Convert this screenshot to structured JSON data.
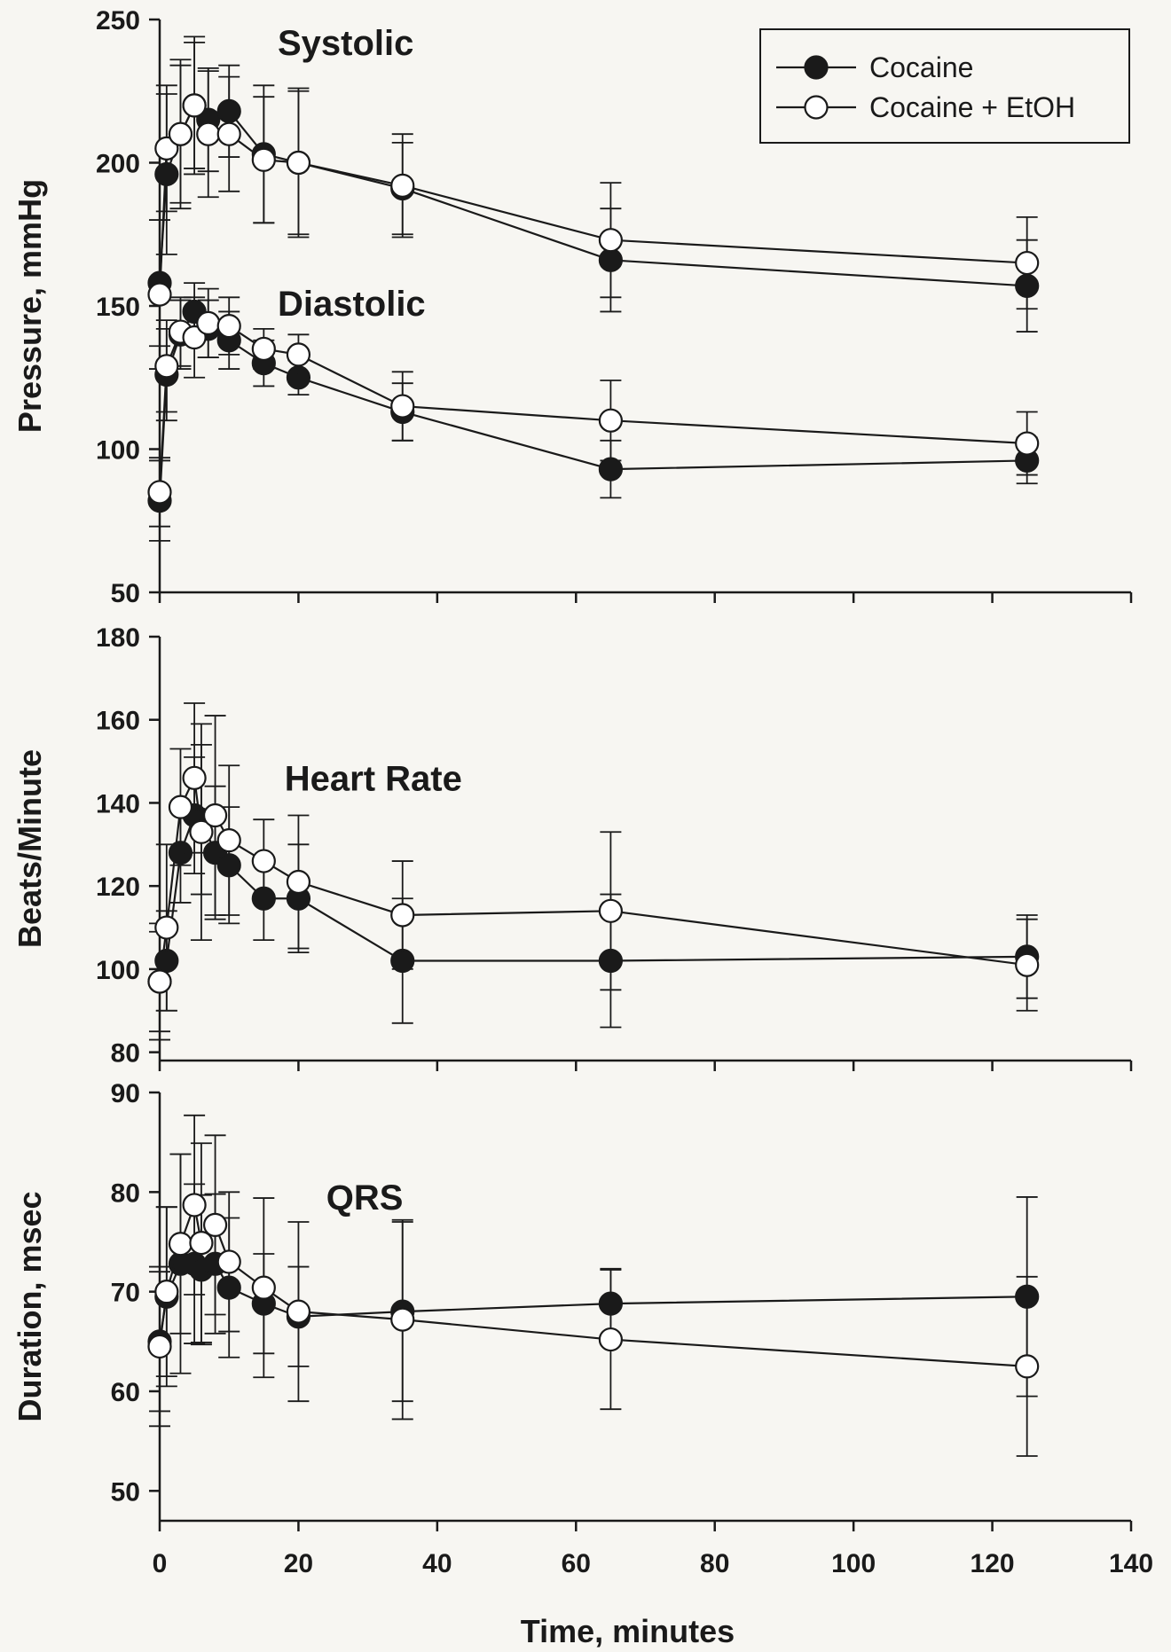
{
  "chart_data": {
    "type": "line",
    "xlabel": "Time, minutes",
    "xlim": [
      0,
      140
    ],
    "xticks": [
      0,
      20,
      40,
      60,
      80,
      100,
      120,
      140
    ],
    "legend": {
      "placement": "top-right",
      "entries": [
        {
          "label": "Cocaine",
          "marker": "filled-circle"
        },
        {
          "label": "Cocaine + EtOH",
          "marker": "open-circle"
        }
      ]
    },
    "colors": {
      "line": "#1a1a1a",
      "filled": "#1a1a1a",
      "open": "#ffffff"
    },
    "panels": [
      {
        "ylabel": "Pressure, mmHg",
        "ylim": [
          50,
          250
        ],
        "yticks": [
          50,
          100,
          150,
          200,
          250
        ],
        "annotations": [
          {
            "text": "Systolic",
            "x": 17,
            "y": 242
          },
          {
            "text": "Diastolic",
            "x": 17,
            "y": 151
          }
        ],
        "series": [
          {
            "label": "Cocaine",
            "marker": "filled",
            "x": [
              0,
              1,
              3,
              5,
              7,
              10,
              15,
              20,
              35,
              65,
              125
            ],
            "y": [
              158,
              196,
              210,
              220,
              215,
              218,
              203,
              200,
              191,
              166,
              157
            ],
            "err": [
              22,
              28,
              24,
              22,
              18,
              16,
              24,
              25,
              16,
              18,
              16
            ]
          },
          {
            "label": "Cocaine + EtOH",
            "marker": "open",
            "x": [
              0,
              1,
              3,
              5,
              7,
              10,
              15,
              20,
              35,
              65,
              125
            ],
            "y": [
              154,
              205,
              210,
              220,
              210,
              210,
              201,
              200,
              192,
              173,
              165
            ],
            "err": [
              26,
              22,
              26,
              24,
              22,
              20,
              22,
              26,
              18,
              20,
              16
            ]
          },
          {
            "label": "Cocaine",
            "marker": "filled",
            "x": [
              0,
              1,
              3,
              5,
              7,
              10,
              15,
              20,
              35,
              65,
              125
            ],
            "y": [
              82,
              126,
              140,
              148,
              142,
              138,
              130,
              125,
              113,
              93,
              96
            ],
            "err": [
              14,
              16,
              12,
              10,
              10,
              10,
              8,
              6,
              10,
              10,
              8
            ]
          },
          {
            "label": "Cocaine + EtOH",
            "marker": "open",
            "x": [
              0,
              1,
              3,
              5,
              7,
              10,
              15,
              20,
              35,
              65,
              125
            ],
            "y": [
              85,
              129,
              141,
              139,
              144,
              143,
              135,
              133,
              115,
              110,
              102
            ],
            "err": [
              12,
              16,
              12,
              14,
              12,
              10,
              7,
              7,
              12,
              14,
              11
            ]
          }
        ]
      },
      {
        "ylabel": "Beats/Minute",
        "ylim": [
          78,
          180
        ],
        "yticks": [
          80,
          100,
          120,
          140,
          160,
          180
        ],
        "annotations": [
          {
            "text": "Heart Rate",
            "x": 18,
            "y": 146
          }
        ],
        "series": [
          {
            "label": "Cocaine",
            "marker": "filled",
            "x": [
              0,
              1,
              3,
              5,
              6,
              8,
              10,
              15,
              20,
              35,
              65,
              125
            ],
            "y": [
              97,
              102,
              128,
              137,
              136,
              128,
              125,
              117,
              117,
              102,
              102,
              103
            ],
            "err": [
              12,
              12,
              12,
              14,
              18,
              16,
              14,
              10,
              13,
              15,
              16,
              10
            ]
          },
          {
            "label": "Cocaine + EtOH",
            "marker": "open",
            "x": [
              0,
              1,
              3,
              5,
              6,
              8,
              10,
              15,
              20,
              35,
              65,
              125
            ],
            "y": [
              97,
              110,
              139,
              146,
              133,
              137,
              131,
              126,
              121,
              113,
              114,
              101
            ],
            "err": [
              14,
              20,
              14,
              18,
              26,
              24,
              18,
              10,
              16,
              13,
              19,
              11
            ]
          }
        ]
      },
      {
        "ylabel": "Duration, msec",
        "ylim": [
          47,
          90
        ],
        "yticks": [
          50,
          60,
          70,
          80,
          90
        ],
        "annotations": [
          {
            "text": "QRS",
            "x": 24,
            "y": 79.5
          }
        ],
        "series": [
          {
            "label": "Cocaine",
            "marker": "filled",
            "x": [
              0,
              1,
              3,
              5,
              6,
              8,
              10,
              15,
              20,
              35,
              65,
              125
            ],
            "y": [
              65,
              69.5,
              72.8,
              72.8,
              72.2,
              72.8,
              70.4,
              68.8,
              67.5,
              68,
              68.8,
              69.5
            ],
            "err": [
              7,
              9,
              11,
              8,
              7.5,
              7,
              7,
              5,
              5,
              9,
              3.5,
              10
            ]
          },
          {
            "label": "Cocaine + EtOH",
            "marker": "open",
            "x": [
              0,
              1,
              3,
              5,
              6,
              8,
              10,
              15,
              20,
              35,
              65,
              125
            ],
            "y": [
              64.5,
              70,
              74.8,
              78.7,
              74.9,
              76.7,
              73,
              70.4,
              68,
              67.2,
              65.2,
              62.5
            ],
            "err": [
              8,
              8.5,
              9,
              9,
              10,
              9,
              7,
              9,
              9,
              10,
              7,
              9
            ]
          }
        ]
      }
    ]
  }
}
